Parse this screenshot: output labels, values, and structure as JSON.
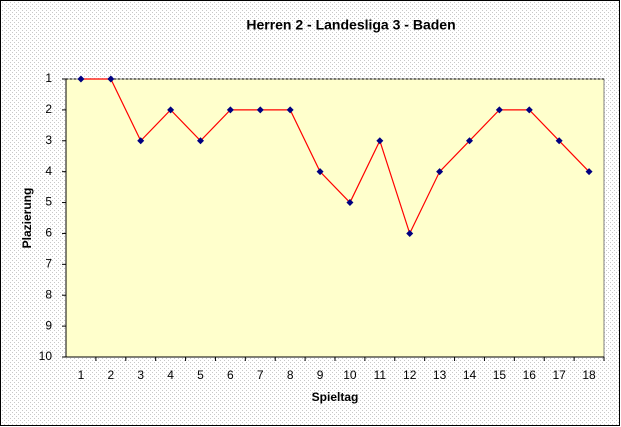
{
  "chart_data": {
    "type": "line",
    "title": "Herren 2 - Landesliga 3 - Baden",
    "x_label": "Spieltag",
    "y_label": "Plazierung",
    "categories": [
      "1",
      "2",
      "3",
      "4",
      "5",
      "6",
      "7",
      "8",
      "9",
      "10",
      "11",
      "12",
      "13",
      "14",
      "15",
      "16",
      "17",
      "18"
    ],
    "series": [
      {
        "color": "#ff0000",
        "marker_color": "#000080",
        "values": [
          1,
          1,
          3,
          2,
          3,
          2,
          2,
          2,
          4,
          5,
          3,
          6,
          4,
          3,
          2,
          2,
          3,
          4
        ]
      }
    ],
    "ylim": [
      1,
      10
    ],
    "y_inverted": true,
    "yticks": [
      1,
      2,
      3,
      4,
      5,
      6,
      7,
      8,
      9,
      10
    ],
    "grid": false
  }
}
